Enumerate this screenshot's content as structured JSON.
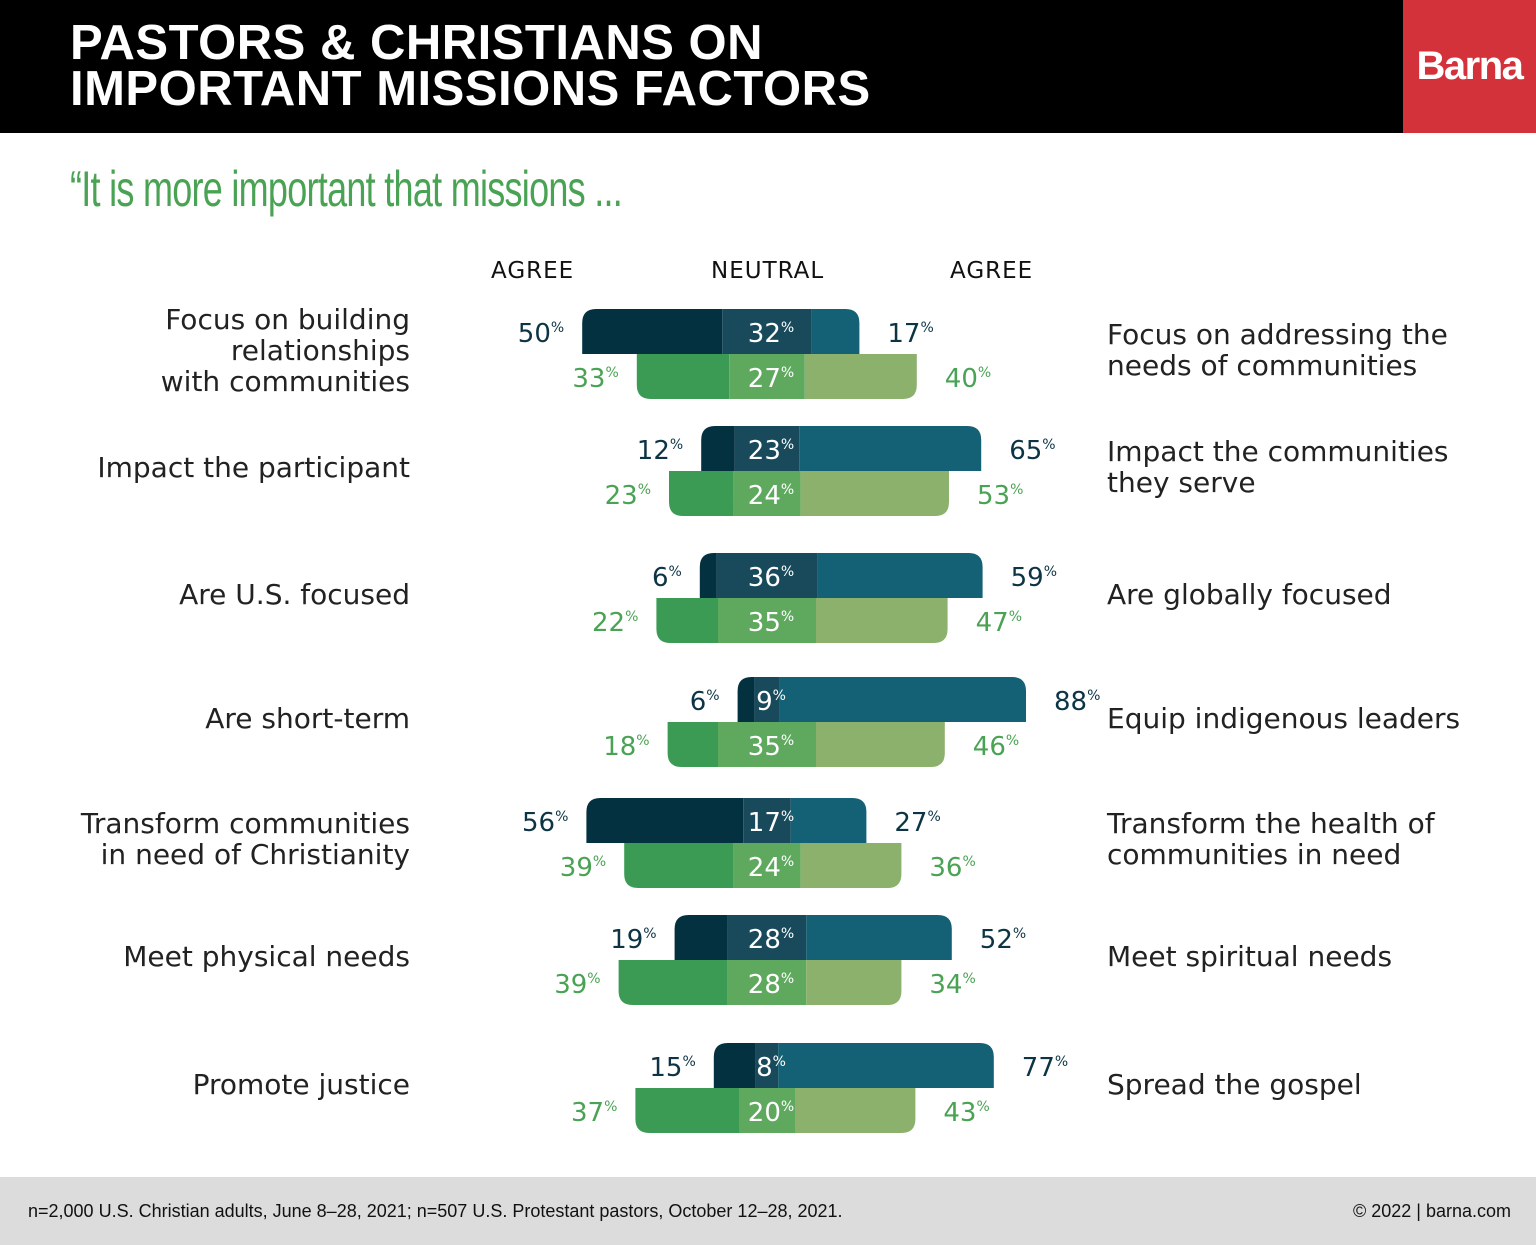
{
  "header": {
    "title_line1": "PASTORS & CHRISTIANS ON",
    "title_line2": "IMPORTANT MISSIONS FACTORS",
    "logo": "Barna"
  },
  "subtitle": "“It is more important that missions ...",
  "columns": {
    "left": "AGREE",
    "center": "NEUTRAL",
    "right": "AGREE"
  },
  "colors": {
    "dark_left": "#04313f",
    "dark_neutral": "#184a5c",
    "dark_right": "#146074",
    "green_left": "#3b9b55",
    "green_neutral": "#5fa95f",
    "green_right": "#8cb16c",
    "dark_label": "#0d3445",
    "green_label": "#4aa354"
  },
  "chart_data": {
    "type": "bar",
    "subtype": "diverging stacked horizontal, two bars per item",
    "value_suffix": "%",
    "items": [
      {
        "left": [
          "Focus on building",
          "relationships",
          "with communities"
        ],
        "right": [
          "Focus on addressing the",
          "needs of communities"
        ],
        "dark": [
          50,
          32,
          17
        ],
        "green": [
          33,
          27,
          40
        ]
      },
      {
        "left": [
          "Impact the participant"
        ],
        "right": [
          "Impact the communities",
          "they serve"
        ],
        "dark": [
          12,
          23,
          65
        ],
        "green": [
          23,
          24,
          53
        ]
      },
      {
        "left": [
          "Are U.S. focused"
        ],
        "right": [
          "Are globally focused"
        ],
        "dark": [
          6,
          36,
          59
        ],
        "green": [
          22,
          35,
          47
        ]
      },
      {
        "left": [
          "Are short-term"
        ],
        "right": [
          "Equip indigenous leaders"
        ],
        "dark": [
          6,
          9,
          88
        ],
        "green": [
          18,
          35,
          46
        ]
      },
      {
        "left": [
          "Transform communities",
          "in need of Christianity"
        ],
        "right": [
          "Transform the health of",
          "communities in need"
        ],
        "dark": [
          56,
          17,
          27
        ],
        "green": [
          39,
          24,
          36
        ]
      },
      {
        "left": [
          "Meet physical needs"
        ],
        "right": [
          "Meet spiritual needs"
        ],
        "dark": [
          19,
          28,
          52
        ],
        "green": [
          39,
          28,
          34
        ]
      },
      {
        "left": [
          "Promote justice"
        ],
        "right": [
          "Spread the gospel"
        ],
        "dark": [
          15,
          8,
          77
        ],
        "green": [
          37,
          20,
          43
        ]
      }
    ]
  },
  "footer": {
    "note": "n=2,000 U.S. Christian adults, June 8–28, 2021; n=507 U.S. Protestant pastors, October 12–28, 2021.",
    "copyright": "© 2022 | barna.com"
  }
}
